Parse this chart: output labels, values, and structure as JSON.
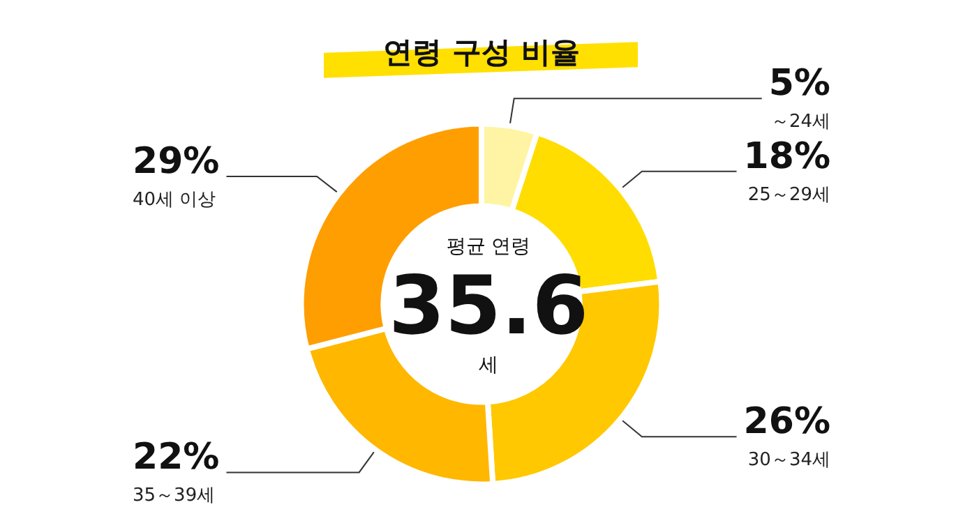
{
  "chart_data": {
    "type": "donut",
    "title": "연령 구성 비율",
    "categories": [
      "～24세",
      "25～29세",
      "30～34세",
      "35～39세",
      "40세 이상"
    ],
    "values": [
      5,
      18,
      26,
      22,
      29
    ],
    "value_labels": [
      "5%",
      "18%",
      "26%",
      "22%",
      "29%"
    ],
    "colors": [
      "#fff4a3",
      "#ffdd00",
      "#ffc800",
      "#ffb700",
      "#ff9e00"
    ],
    "annotations": [
      "평균 연령",
      "35.6",
      "세"
    ]
  }
}
